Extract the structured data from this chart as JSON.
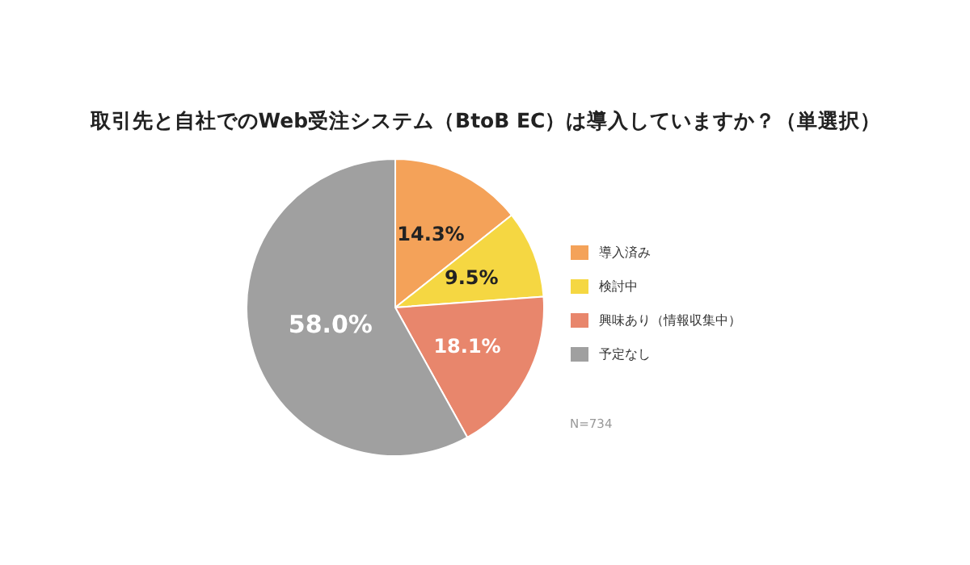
{
  "chart_data": {
    "type": "pie",
    "title": "取引先と自社でのWeb受注システム（BtoB EC）は導入していますか？（単選択）",
    "categories": [
      "導入済み",
      "検討中",
      "興味あり（情報収集中）",
      "予定なし"
    ],
    "values": [
      14.3,
      9.5,
      18.1,
      58.0
    ],
    "colors": [
      "#f4a259",
      "#f5d742",
      "#e8866c",
      "#a0a0a0"
    ],
    "value_labels": [
      "14.3%",
      "9.5%",
      "18.1%",
      "58.0%"
    ],
    "legend": "right",
    "annotations": [
      "N=734"
    ]
  }
}
